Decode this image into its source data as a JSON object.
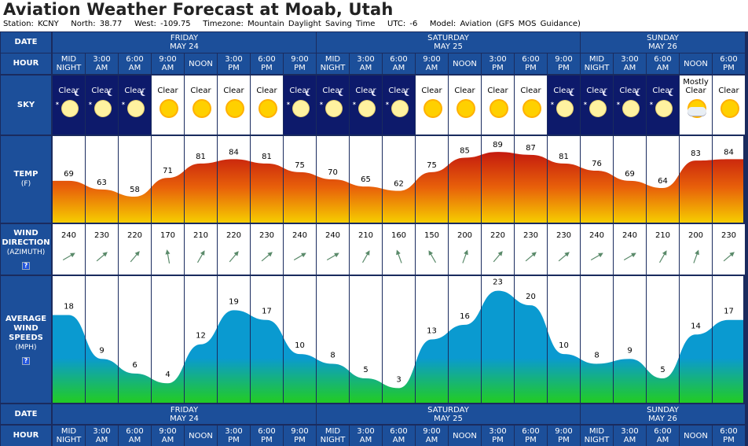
{
  "title": "Aviation Weather Forecast at Moab, Utah",
  "info": {
    "station": "Station: KCNY",
    "north": "North: 38.77",
    "west": "West: -109.75",
    "timezone": "Timezone: Mountain Daylight Saving Time",
    "utc": "UTC: -6",
    "model": "Model: Aviation (GFS MOS Guidance)"
  },
  "row_labels": {
    "date": "DATE",
    "hour": "HOUR",
    "sky": "SKY",
    "temp": "TEMP",
    "temp_unit": "(F)",
    "wind_dir_1": "WIND",
    "wind_dir_2": "DIRECTION",
    "wind_dir_unit": "(AZIMUTH)",
    "wind_speed_1": "AVERAGE",
    "wind_speed_2": "WIND",
    "wind_speed_3": "SPEEDS",
    "wind_speed_unit": "(MPH)",
    "help": "?"
  },
  "days": [
    {
      "name": "FRIDAY",
      "date": "MAY 24"
    },
    {
      "name": "SATURDAY",
      "date": "MAY 25"
    },
    {
      "name": "SUNDAY",
      "date": "MAY 26"
    }
  ],
  "hour_labels": [
    [
      "MID",
      "NIGHT"
    ],
    [
      "3:00",
      "AM"
    ],
    [
      "6:00",
      "AM"
    ],
    [
      "9:00",
      "AM"
    ],
    [
      "NOON",
      ""
    ],
    [
      "3:00",
      "PM"
    ],
    [
      "6:00",
      "PM"
    ],
    [
      "9:00",
      "PM"
    ],
    [
      "MID",
      "NIGHT"
    ],
    [
      "3:00",
      "AM"
    ],
    [
      "6:00",
      "AM"
    ],
    [
      "9:00",
      "AM"
    ],
    [
      "NOON",
      ""
    ],
    [
      "3:00",
      "PM"
    ],
    [
      "6:00",
      "PM"
    ],
    [
      "9:00",
      "PM"
    ],
    [
      "MID",
      "NIGHT"
    ],
    [
      "3:00",
      "AM"
    ],
    [
      "6:00",
      "AM"
    ],
    [
      "NOON",
      ""
    ],
    [
      "6:00",
      "PM"
    ]
  ],
  "sky": [
    {
      "text": "Clear",
      "night": true,
      "icon": "night-clear-icon"
    },
    {
      "text": "Clear",
      "night": true,
      "icon": "night-clear-icon"
    },
    {
      "text": "Clear",
      "night": true,
      "icon": "night-clear-icon"
    },
    {
      "text": "Clear",
      "night": false,
      "icon": "sun-icon"
    },
    {
      "text": "Clear",
      "night": false,
      "icon": "sun-icon"
    },
    {
      "text": "Clear",
      "night": false,
      "icon": "sun-icon"
    },
    {
      "text": "Clear",
      "night": false,
      "icon": "sun-icon"
    },
    {
      "text": "Clear",
      "night": true,
      "icon": "night-clear-icon"
    },
    {
      "text": "Clear",
      "night": true,
      "icon": "night-clear-icon"
    },
    {
      "text": "Clear",
      "night": true,
      "icon": "night-clear-icon"
    },
    {
      "text": "Clear",
      "night": true,
      "icon": "night-clear-icon"
    },
    {
      "text": "Clear",
      "night": false,
      "icon": "sun-icon"
    },
    {
      "text": "Clear",
      "night": false,
      "icon": "sun-icon"
    },
    {
      "text": "Clear",
      "night": false,
      "icon": "sun-icon"
    },
    {
      "text": "Clear",
      "night": false,
      "icon": "sun-icon"
    },
    {
      "text": "Clear",
      "night": true,
      "icon": "night-clear-icon"
    },
    {
      "text": "Clear",
      "night": true,
      "icon": "night-clear-icon"
    },
    {
      "text": "Clear",
      "night": true,
      "icon": "night-clear-icon"
    },
    {
      "text": "Clear",
      "night": true,
      "icon": "night-clear-icon"
    },
    {
      "text": "Mostly Clear",
      "night": false,
      "icon": "mostly-clear-icon"
    },
    {
      "text": "Clear",
      "night": false,
      "icon": "sun-icon"
    }
  ],
  "chart_data": [
    {
      "type": "area",
      "name": "TEMP (F)",
      "x": [
        "MID NIGHT",
        "3:00 AM",
        "6:00 AM",
        "9:00 AM",
        "NOON",
        "3:00 PM",
        "6:00 PM",
        "9:00 PM",
        "MID NIGHT",
        "3:00 AM",
        "6:00 AM",
        "9:00 AM",
        "NOON",
        "3:00 PM",
        "6:00 PM",
        "9:00 PM",
        "MID NIGHT",
        "3:00 AM",
        "6:00 AM",
        "NOON",
        "6:00 PM"
      ],
      "values": [
        69,
        63,
        58,
        71,
        81,
        84,
        81,
        75,
        70,
        65,
        62,
        75,
        85,
        89,
        87,
        81,
        76,
        69,
        64,
        83,
        84
      ],
      "ylim": [
        40,
        100
      ],
      "colors": {
        "top": "#c41a0e",
        "mid": "#e8600a",
        "bottom": "#f6cd00"
      }
    },
    {
      "type": "bar",
      "name": "WIND DIRECTION (AZIMUTH)",
      "x": [
        "MID NIGHT",
        "3:00 AM",
        "6:00 AM",
        "9:00 AM",
        "NOON",
        "3:00 PM",
        "6:00 PM",
        "9:00 PM",
        "MID NIGHT",
        "3:00 AM",
        "6:00 AM",
        "9:00 AM",
        "NOON",
        "3:00 PM",
        "6:00 PM",
        "9:00 PM",
        "MID NIGHT",
        "3:00 AM",
        "6:00 AM",
        "NOON",
        "6:00 PM"
      ],
      "values": [
        240,
        230,
        220,
        170,
        210,
        220,
        230,
        240,
        240,
        210,
        160,
        150,
        200,
        220,
        230,
        230,
        240,
        240,
        210,
        200,
        230
      ],
      "arrow_color": "#5a8a6a"
    },
    {
      "type": "area",
      "name": "AVERAGE WIND SPEEDS (MPH)",
      "x": [
        "MID NIGHT",
        "3:00 AM",
        "6:00 AM",
        "9:00 AM",
        "NOON",
        "3:00 PM",
        "6:00 PM",
        "9:00 PM",
        "MID NIGHT",
        "3:00 AM",
        "6:00 AM",
        "9:00 AM",
        "NOON",
        "3:00 PM",
        "6:00 PM",
        "9:00 PM",
        "MID NIGHT",
        "3:00 AM",
        "6:00 AM",
        "NOON",
        "6:00 PM"
      ],
      "values": [
        18,
        9,
        6,
        4,
        12,
        19,
        17,
        10,
        8,
        5,
        3,
        13,
        16,
        23,
        20,
        10,
        8,
        9,
        5,
        14,
        17
      ],
      "ylim": [
        0,
        26
      ],
      "colors": {
        "top": "#0a9ad0",
        "bottom": "#22cc22"
      }
    }
  ]
}
